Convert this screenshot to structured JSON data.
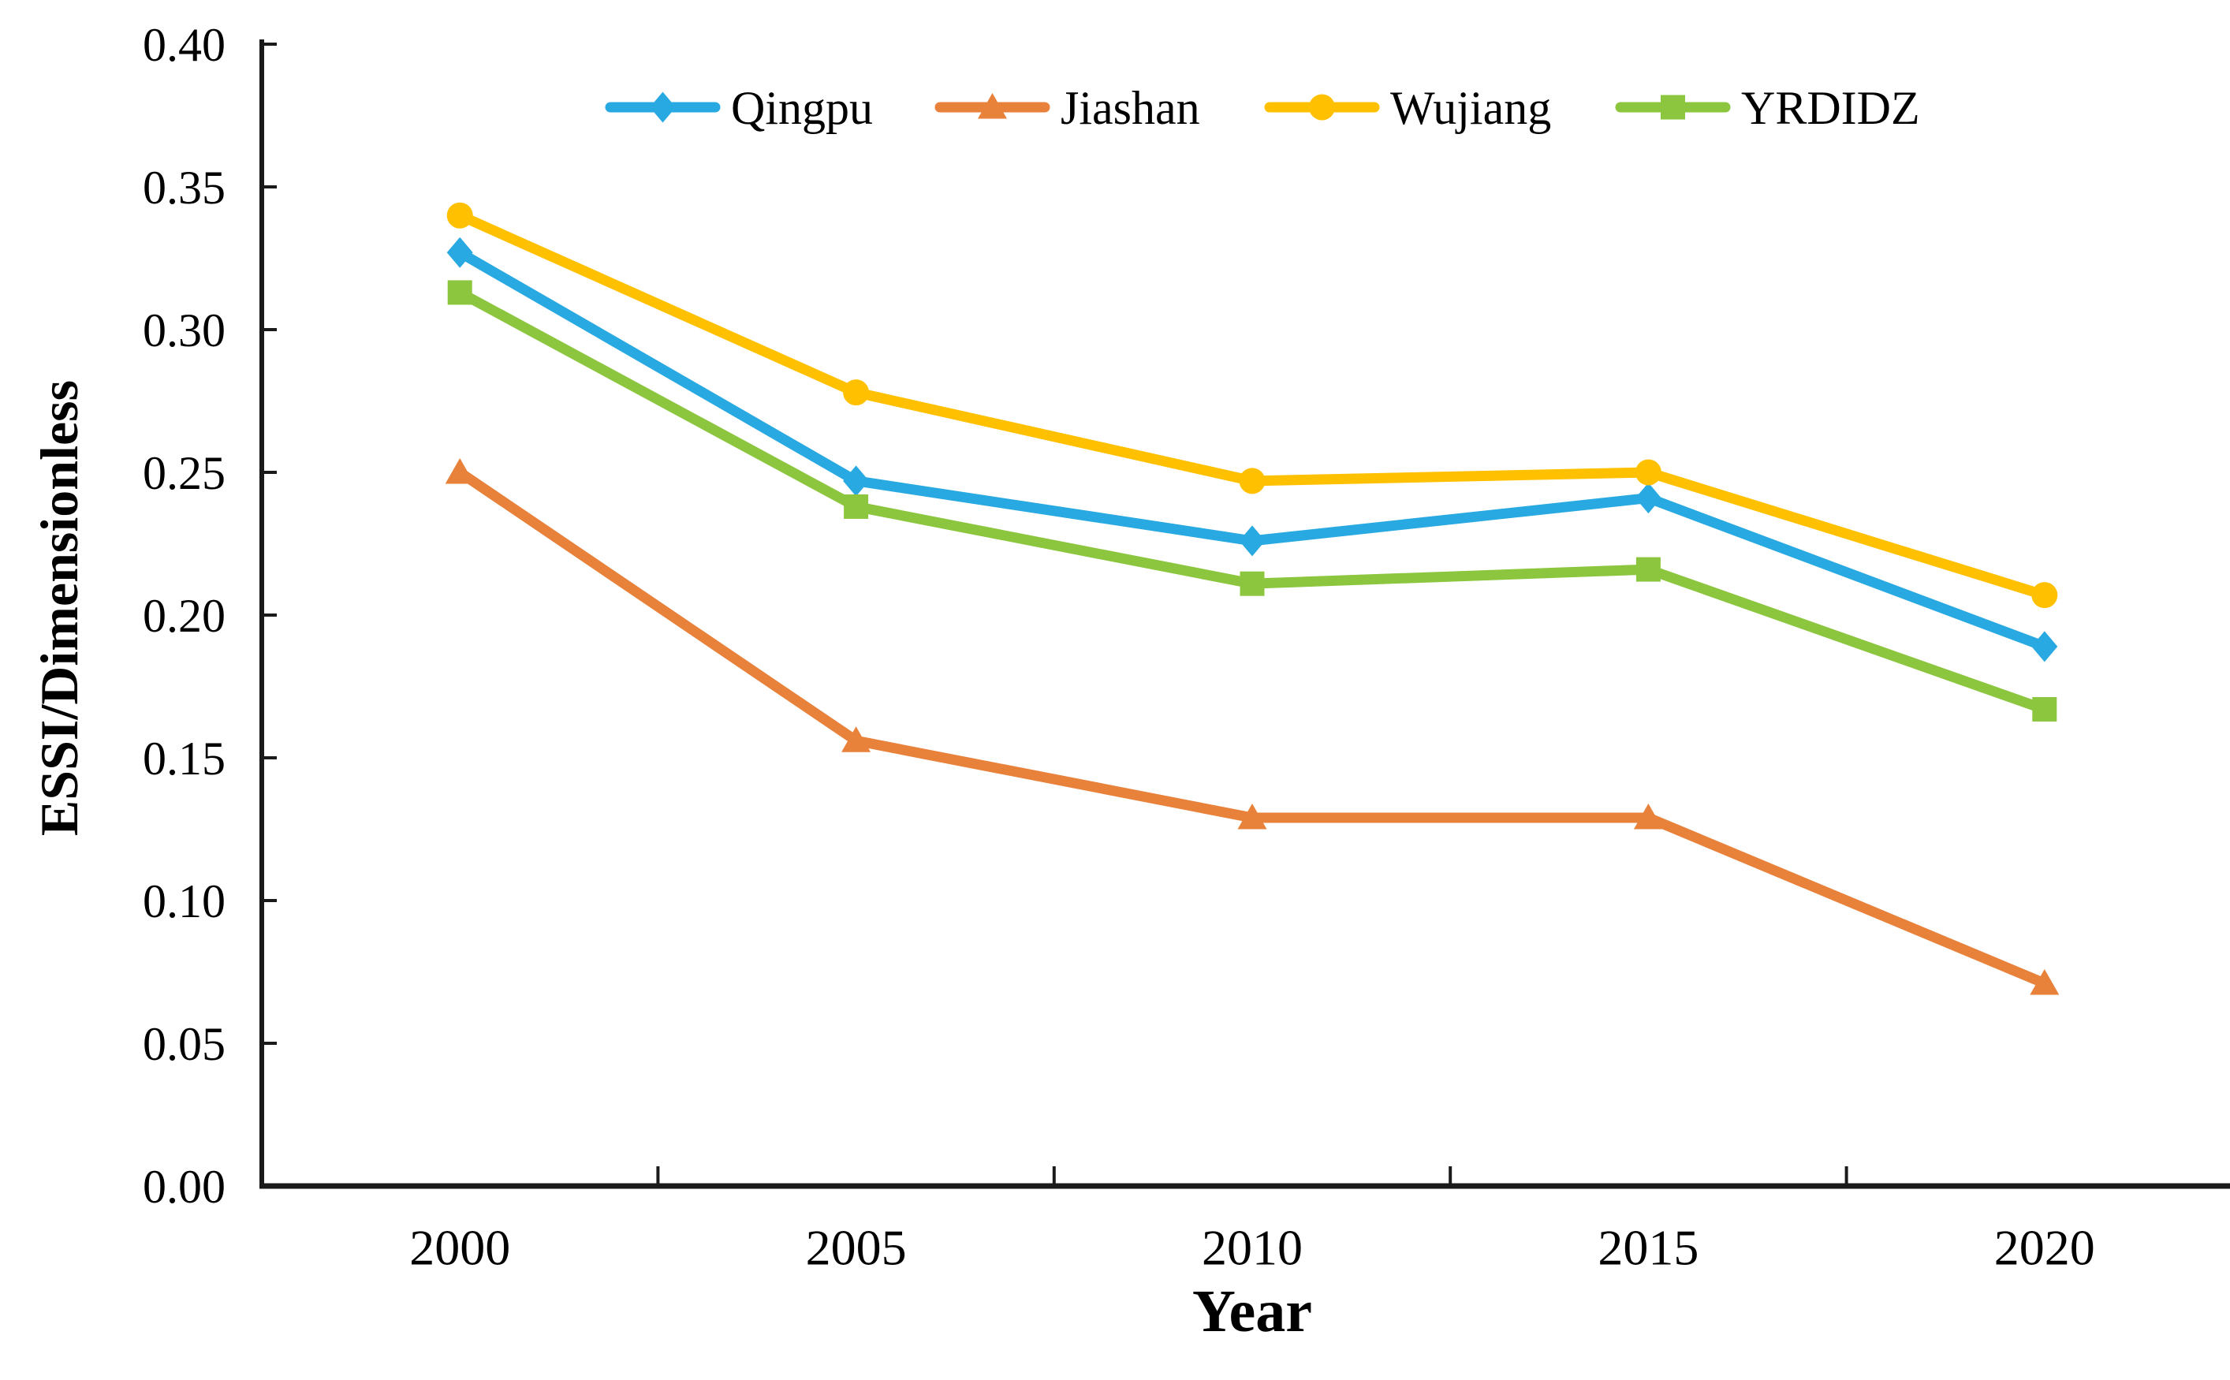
{
  "chart_data": {
    "type": "line",
    "title": "",
    "xlabel": "Year",
    "ylabel": "ESSI/Dimensionless",
    "categories": [
      "2000",
      "2005",
      "2010",
      "2015",
      "2020"
    ],
    "x": [
      2000,
      2005,
      2010,
      2015,
      2020
    ],
    "ylim": [
      0.0,
      0.4
    ],
    "ytick_step": 0.05,
    "ytick_labels": [
      "0.00",
      "0.05",
      "0.10",
      "0.15",
      "0.20",
      "0.25",
      "0.30",
      "0.35",
      "0.40"
    ],
    "grid": false,
    "legend_position": "top-center",
    "axis_color": "#1a1a1a",
    "series": [
      {
        "name": "Qingpu",
        "marker": "diamond-icon",
        "color": "#29A9E1",
        "values": [
          0.327,
          0.247,
          0.226,
          0.241,
          0.189
        ]
      },
      {
        "name": "Jiashan",
        "marker": "triangle-icon",
        "color": "#E8813A",
        "values": [
          0.25,
          0.156,
          0.129,
          0.129,
          0.071
        ]
      },
      {
        "name": "Wujiang",
        "marker": "circle-icon",
        "color": "#FFC000",
        "values": [
          0.34,
          0.278,
          0.247,
          0.25,
          0.207
        ]
      },
      {
        "name": "YRDIDZ",
        "marker": "square-icon",
        "color": "#8CC63F",
        "values": [
          0.313,
          0.238,
          0.211,
          0.216,
          0.167
        ]
      }
    ]
  }
}
